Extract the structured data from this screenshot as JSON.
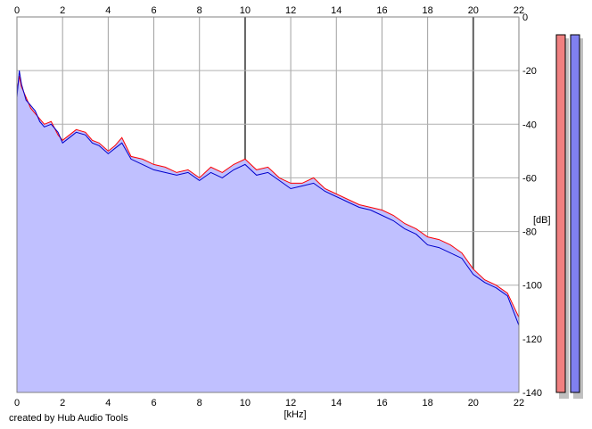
{
  "chart_data": {
    "type": "area",
    "xlabel": "[kHz]",
    "ylabel": "[dB]",
    "xlim": [
      0,
      22
    ],
    "ylim": [
      -140,
      0
    ],
    "x_ticks": [
      "0",
      "2",
      "4",
      "6",
      "8",
      "10",
      "12",
      "14",
      "16",
      "18",
      "20",
      "22"
    ],
    "y_ticks": [
      "0",
      "-20",
      "-40",
      "-60",
      "-80",
      "-100",
      "-120",
      "-140"
    ],
    "grid": true,
    "series": [
      {
        "color": "#ff0000",
        "x": [
          0,
          0.1,
          0.2,
          0.4,
          0.6,
          0.8,
          1,
          1.2,
          1.5,
          1.8,
          2,
          2.3,
          2.6,
          3,
          3.3,
          3.6,
          4,
          4.3,
          4.6,
          5,
          5.5,
          6,
          6.5,
          7,
          7.5,
          8,
          8.5,
          9,
          9.5,
          10,
          10.5,
          11,
          11.5,
          12,
          12.5,
          13,
          13.5,
          14,
          14.5,
          15,
          15.5,
          16,
          16.5,
          17,
          17.5,
          18,
          18.5,
          19,
          19.5,
          20,
          20.5,
          21,
          21.5,
          22
        ],
        "values": [
          -28,
          -22,
          -26,
          -30,
          -34,
          -36,
          -38,
          -40,
          -39,
          -44,
          -46,
          -44,
          -42,
          -43,
          -46,
          -47,
          -50,
          -48,
          -45,
          -52,
          -53,
          -55,
          -56,
          -58,
          -57,
          -60,
          -56,
          -58,
          -55,
          -53,
          -57,
          -56,
          -60,
          -62,
          -62,
          -60,
          -64,
          -66,
          -68,
          -70,
          -71,
          -72,
          -74,
          -77,
          -79,
          -82,
          -83,
          -85,
          -88,
          -94,
          -98,
          -100,
          -103,
          -112
        ]
      },
      {
        "color": "#0000cc",
        "x": [
          0,
          0.1,
          0.2,
          0.4,
          0.6,
          0.8,
          1,
          1.2,
          1.5,
          1.8,
          2,
          2.3,
          2.6,
          3,
          3.3,
          3.6,
          4,
          4.3,
          4.6,
          5,
          5.5,
          6,
          6.5,
          7,
          7.5,
          8,
          8.5,
          9,
          9.5,
          10,
          10.5,
          11,
          11.5,
          12,
          12.5,
          13,
          13.5,
          14,
          14.5,
          15,
          15.5,
          16,
          16.5,
          17,
          17.5,
          18,
          18.5,
          19,
          19.5,
          20,
          20.5,
          21,
          21.5,
          22
        ],
        "values": [
          -30,
          -20,
          -25,
          -31,
          -33,
          -35,
          -39,
          -41,
          -40,
          -43,
          -47,
          -45,
          -43,
          -44,
          -47,
          -48,
          -51,
          -49,
          -47,
          -53,
          -55,
          -57,
          -58,
          -59,
          -58,
          -61,
          -58,
          -60,
          -57,
          -55,
          -59,
          -58,
          -61,
          -64,
          -63,
          -62,
          -65,
          -67,
          -69,
          -71,
          -72,
          -74,
          -76,
          -79,
          -81,
          -85,
          -86,
          -88,
          -90,
          -96,
          -99,
          -101,
          -104,
          -115
        ]
      }
    ]
  },
  "meters": [
    {
      "color": "#f08080"
    },
    {
      "color": "#8080f0"
    }
  ],
  "fill_color": "#c0c0ff",
  "credit": "created by Hub Audio Tools"
}
